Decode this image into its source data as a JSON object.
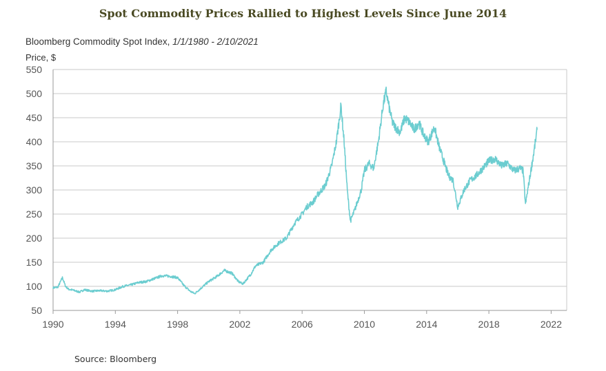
{
  "title": "Spot Commodity Prices Rallied to Highest Levels Since June 2014",
  "subtitle": "Bloomberg Commodity Spot Index, ",
  "subtitle_range": "1/1/1980 - 2/10/2021",
  "source": "Source: Bloomberg",
  "colors": {
    "line": "#6ccdd0",
    "grid": "#c9c9c9",
    "axis": "#9a9a9a",
    "title": "#4a4a23"
  },
  "chart_data": {
    "type": "line",
    "title": "Spot Commodity Prices Rallied to Highest Levels Since June 2014",
    "subtitle": "Bloomberg Commodity Spot Index, 1/1/1980 - 2/10/2021",
    "ylabel": "Price, $",
    "xlabel": "",
    "xlim": [
      1990,
      2023
    ],
    "ylim": [
      50,
      550
    ],
    "grid": true,
    "x_ticks": [
      "1990",
      "1994",
      "1998",
      "2002",
      "2006",
      "2010",
      "2014",
      "2018",
      "2022"
    ],
    "y_ticks": [
      "50",
      "100",
      "150",
      "200",
      "250",
      "300",
      "350",
      "400",
      "450",
      "500",
      "550"
    ],
    "series": [
      {
        "name": "Bloomberg Commodity Spot Index",
        "x": [
          1990.0,
          1990.3,
          1990.6,
          1990.8,
          1991.0,
          1991.3,
          1991.7,
          1992.0,
          1992.5,
          1993.0,
          1993.5,
          1994.0,
          1994.5,
          1995.0,
          1995.5,
          1996.0,
          1996.5,
          1997.0,
          1997.5,
          1998.0,
          1998.4,
          1998.8,
          1999.1,
          1999.5,
          2000.0,
          2000.5,
          2001.0,
          2001.5,
          2001.9,
          2002.2,
          2002.7,
          2003.0,
          2003.5,
          2004.0,
          2004.5,
          2005.0,
          2005.5,
          2006.0,
          2006.3,
          2006.7,
          2007.0,
          2007.5,
          2007.9,
          2008.2,
          2008.5,
          2008.7,
          2008.9,
          2009.1,
          2009.4,
          2009.8,
          2010.0,
          2010.3,
          2010.6,
          2010.9,
          2011.2,
          2011.4,
          2011.6,
          2011.8,
          2012.0,
          2012.3,
          2012.6,
          2012.9,
          2013.2,
          2013.5,
          2013.8,
          2014.1,
          2014.5,
          2014.8,
          2015.1,
          2015.4,
          2015.7,
          2016.0,
          2016.4,
          2016.8,
          2017.2,
          2017.6,
          2018.0,
          2018.4,
          2018.8,
          2019.2,
          2019.6,
          2020.0,
          2020.2,
          2020.35,
          2020.6,
          2020.9,
          2021.1
        ],
        "values": [
          97,
          98,
          118,
          100,
          94,
          92,
          88,
          93,
          90,
          91,
          90,
          93,
          100,
          103,
          108,
          110,
          116,
          122,
          121,
          118,
          102,
          90,
          85,
          96,
          110,
          120,
          133,
          127,
          110,
          105,
          125,
          142,
          150,
          175,
          190,
          200,
          230,
          250,
          265,
          275,
          290,
          310,
          350,
          400,
          475,
          400,
          300,
          235,
          260,
          300,
          340,
          355,
          345,
          400,
          475,
          505,
          470,
          440,
          430,
          420,
          450,
          440,
          425,
          440,
          415,
          400,
          430,
          390,
          360,
          330,
          320,
          265,
          300,
          320,
          330,
          345,
          360,
          365,
          350,
          355,
          340,
          345,
          340,
          270,
          320,
          380,
          425
        ]
      }
    ]
  }
}
